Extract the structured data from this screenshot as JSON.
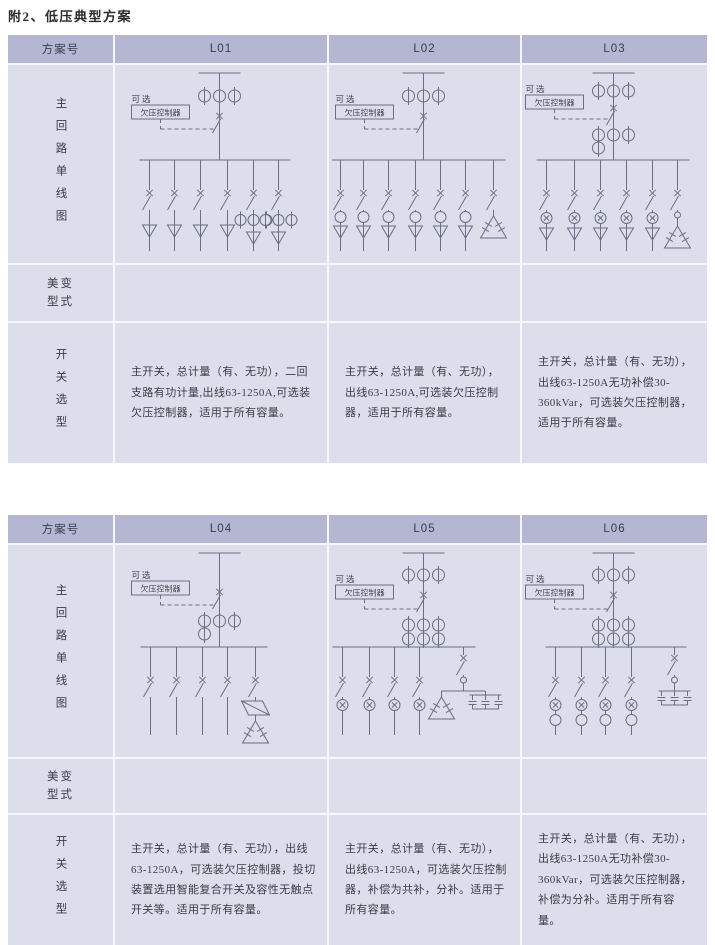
{
  "page": {
    "title": "附2、低压典型方案"
  },
  "diagram_labels": {
    "optional": "可选",
    "controller": "欠压控制器"
  },
  "row_labels": {
    "diagram": "主回路单线图",
    "transformer": "美变型式",
    "switch_sel": "开关选型"
  },
  "colors": {
    "header_bg": "#b5b6d2",
    "cell_bg": "#dcdeeb",
    "line": "#6a6e82"
  },
  "tables": [
    {
      "scheme_col_header": "方案号",
      "schemes": [
        "L01",
        "L02",
        "L03"
      ],
      "notes": [
        "主开关，总计量（有、无功），二回支路有功计量,出线63-1250A,可选装欠压控制器，适用于所有容量。",
        "主开关，总计量（有、无功），出线63-1250A,可选装欠压控制器，适用于所有容量。",
        "主开关，总计量（有、无功），出线63-1250A无功补偿30-360kVar，可选装欠压控制器，适用于所有容量。"
      ],
      "diagrams": [
        {
          "variant": "A",
          "feeders": [
            {
              "x": 0.16,
              "items": [
                "sw",
                "arrow"
              ]
            },
            {
              "x": 0.28,
              "items": [
                "sw",
                "arrow"
              ]
            },
            {
              "x": 0.4,
              "items": [
                "sw",
                "arrow"
              ]
            },
            {
              "x": 0.53,
              "items": [
                "sw",
                "arrow"
              ]
            },
            {
              "x": 0.65,
              "items": [
                "sw",
                "m3",
                "arrow"
              ]
            },
            {
              "x": 0.77,
              "items": [
                "sw",
                "m3",
                "arrow"
              ]
            }
          ]
        },
        {
          "variant": "A",
          "feeders": [
            {
              "x": 0.06,
              "items": [
                "sw",
                "circle",
                "arrow"
              ]
            },
            {
              "x": 0.18,
              "items": [
                "sw",
                "circle",
                "arrow"
              ]
            },
            {
              "x": 0.31,
              "items": [
                "sw",
                "circle",
                "arrow"
              ]
            },
            {
              "x": 0.45,
              "items": [
                "sw",
                "circle",
                "arrow"
              ]
            },
            {
              "x": 0.58,
              "items": [
                "sw",
                "circle",
                "arrow"
              ]
            },
            {
              "x": 0.71,
              "items": [
                "sw",
                "circle",
                "arrow"
              ]
            },
            {
              "x": 0.86,
              "items": [
                "sw",
                "capd"
              ]
            }
          ]
        },
        {
          "variant": "B",
          "feeders": [
            {
              "x": 0.13,
              "items": [
                "sw",
                "ox",
                "arrow"
              ]
            },
            {
              "x": 0.28,
              "items": [
                "sw",
                "ox",
                "arrow"
              ]
            },
            {
              "x": 0.42,
              "items": [
                "sw",
                "ox",
                "arrow"
              ]
            },
            {
              "x": 0.56,
              "items": [
                "sw",
                "ox",
                "arrow"
              ]
            },
            {
              "x": 0.7,
              "items": [
                "sw",
                "ox",
                "arrow"
              ]
            },
            {
              "x": 0.84,
              "items": [
                "sw",
                "c",
                "capd"
              ]
            }
          ]
        }
      ]
    },
    {
      "scheme_col_header": "方案号",
      "schemes": [
        "L04",
        "L05",
        "L06"
      ],
      "notes": [
        "主开关，总计量（有、无功），出线63-1250A，可选装欠压控制器，投切装置选用智能复合开关及容性无触点开关等。适用于所有容量。",
        "主开关，总计量（有、无功），出线63-1250A，可选装欠压控制器，补偿为共补，分补。适用于所有容量。",
        "主开关，总计量（有、无功），出线63-1250A无功补偿30-360kVar，可选装欠压控制器，补偿为分补。适用于所有容量。"
      ],
      "diagrams": [
        {
          "variant": "C",
          "feeders": [
            {
              "x": 0.165,
              "items": [
                "sw"
              ]
            },
            {
              "x": 0.29,
              "items": [
                "sw"
              ]
            },
            {
              "x": 0.41,
              "items": [
                "sw"
              ]
            },
            {
              "x": 0.53,
              "items": [
                "sw"
              ]
            },
            {
              "x": 0.66,
              "items": [
                "sw",
                "scr",
                "capd"
              ]
            }
          ]
        },
        {
          "variant": "D",
          "feeders": [
            {
              "x": 0.07,
              "items": [
                "sw",
                "ox"
              ]
            },
            {
              "x": 0.21,
              "items": [
                "sw",
                "ox"
              ]
            },
            {
              "x": 0.34,
              "items": [
                "sw",
                "ox"
              ]
            },
            {
              "x": 0.47,
              "items": [
                "sw",
                "ox"
              ]
            },
            {
              "x": 0.7,
              "drop": 8,
              "items": [
                "sw",
                "c",
                "split"
              ]
            }
          ]
        },
        {
          "variant": "D",
          "feeders": [
            {
              "x": 0.18,
              "items": [
                "sw",
                "ox",
                "circle"
              ]
            },
            {
              "x": 0.32,
              "items": [
                "sw",
                "ox",
                "circle"
              ]
            },
            {
              "x": 0.45,
              "items": [
                "sw",
                "ox",
                "circle"
              ]
            },
            {
              "x": 0.59,
              "items": [
                "sw",
                "ox",
                "circle"
              ]
            },
            {
              "x": 0.82,
              "drop": 8,
              "items": [
                "sw",
                "c",
                "cap3"
              ]
            }
          ]
        }
      ]
    }
  ]
}
